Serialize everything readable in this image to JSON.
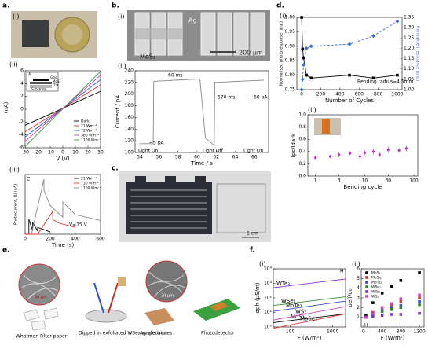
{
  "labels": {
    "a": "a.",
    "b": "b.",
    "c": "c.",
    "d": "d.",
    "e": "e.",
    "f": "f.",
    "a_i": "(i)",
    "a_ii": "(ii)",
    "a_iii": "(iii)",
    "b_i": "(i)",
    "b_ii": "(ii)",
    "d_i": "(i)",
    "d_ii": "(ii)",
    "f_i": "(i)",
    "f_ii": "(ii)"
  },
  "images": {
    "b_i": {
      "electrode": "Ag",
      "material": "MoS₂",
      "scale_bar": "200 μm"
    },
    "c": {
      "scale_bar": "1 cm"
    },
    "e": {
      "paper": "Whatman Filter paper",
      "dip": "Dipped in exfoliated WSe₂ suspension",
      "electrodes": "Ag electrodes",
      "device": "Photodetector",
      "scale_bar_1": "30 μm",
      "scale_bar_2": "30 μm"
    }
  },
  "plots": {
    "a_ii": {
      "type": "line",
      "xlabel": "V (V)",
      "ylabel": "I (nA)",
      "xlim": [
        -30,
        30
      ],
      "ylim": [
        -6,
        6
      ],
      "xticks": [
        -30,
        -20,
        -10,
        0,
        10,
        20,
        30
      ],
      "yticks": [
        -6,
        -4,
        -2,
        0,
        2,
        4,
        6
      ],
      "x": [
        -30,
        30
      ],
      "legend": "lower right",
      "panel": "A",
      "inset": {
        "top": "Gold",
        "layer": "MoS₂",
        "bottom": "ITO",
        "base": "Substrate"
      },
      "series": [
        {
          "name": "Dark",
          "color": "#000000",
          "values": [
            -2.5,
            2.8
          ]
        },
        {
          "name": "21 Wm⁻²",
          "color": "#e03030",
          "values": [
            -3.5,
            3.8
          ]
        },
        {
          "name": "72 Wm⁻²",
          "color": "#3050d0",
          "values": [
            -4.3,
            4.6
          ]
        },
        {
          "name": "360 Wm⁻²",
          "color": "#c040c0",
          "values": [
            -5,
            5.3
          ]
        },
        {
          "name": "1100 Wm⁻²",
          "color": "#40a040",
          "values": [
            -5.8,
            5.9
          ]
        }
      ]
    },
    "a_iii": {
      "type": "line",
      "xlabel": "Time (s)",
      "ylabel": "Photocurrent, ΔI (nA)",
      "xlim": [
        0,
        600
      ],
      "ylim": [
        0,
        5.2
      ],
      "xticks": [
        0,
        200,
        400,
        600
      ],
      "legend": "upper right",
      "panel": "C",
      "annotation": "V=15 V",
      "series": [
        {
          "name": "21 Wm⁻²",
          "color": "#000000",
          "x": [
            0,
            30,
            30,
            60,
            60,
            100,
            100,
            200
          ],
          "values": [
            0,
            0,
            1.3,
            0.3,
            1.0,
            0.3,
            0.6,
            0.2
          ]
        },
        {
          "name": "130 Wm⁻²",
          "color": "#e03030",
          "x": [
            0,
            100,
            220,
            220,
            260,
            400
          ],
          "values": [
            0,
            0,
            2.0,
            1.3,
            1.0,
            0.6
          ]
        },
        {
          "name": "1100 Wm⁻²",
          "color": "#888888",
          "x": [
            50,
            150,
            150,
            200,
            300,
            300,
            400,
            600
          ],
          "values": [
            0,
            4.8,
            3.8,
            2.5,
            1.5,
            2.8,
            1.7,
            1.2
          ]
        }
      ]
    },
    "b_ii": {
      "type": "line",
      "xlabel": "Time / s",
      "ylabel": "Current / pA",
      "xlim": [
        53.5,
        67.5
      ],
      "ylim": [
        100,
        240
      ],
      "xticks": [
        54,
        56,
        58,
        60,
        62,
        64,
        66
      ],
      "yticks": [
        100,
        120,
        140,
        160,
        180,
        200,
        220,
        240
      ],
      "annotations": [
        "60 ms",
        "570 ms",
        "~5 pA",
        "~60 pA",
        "Light On",
        "Light Off",
        "Light On"
      ],
      "series": [
        {
          "name": "current",
          "color": "#888888",
          "x": [
            54,
            55.4,
            55.46,
            60.3,
            60.87,
            61.8,
            61.86,
            67
          ],
          "values": [
            115,
            115,
            222,
            226,
            125,
            112,
            220,
            224
          ]
        }
      ]
    },
    "d_i": {
      "type": "line",
      "xlabel": "Number of Cycles",
      "ylabel": "Normalised photoresponse (a.u.)",
      "y2label": "Normalized resistance (a.u.)",
      "xlim": [
        -50,
        1050
      ],
      "ylim": [
        0.75,
        1.0
      ],
      "y2lim": [
        1.0,
        1.35
      ],
      "xticks": [
        0,
        200,
        400,
        600,
        800,
        1000
      ],
      "yticks": [
        0.75,
        {
          "value": 0.8,
          "label": "0.80"
        },
        0.85,
        {
          "value": 0.9,
          "label": "0.90"
        },
        0.95,
        {
          "value": 1,
          "label": "1.00"
        }
      ],
      "y2ticks": [
        {
          "value": 1,
          "label": "1.00"
        },
        1.05,
        {
          "value": 1.1,
          "label": "1.10"
        },
        1.15,
        {
          "value": 1.2,
          "label": "1.20"
        },
        1.25,
        {
          "value": 1.3,
          "label": "1.30"
        },
        1.35
      ],
      "annotation": "Bending radius=4.5mm",
      "x": [
        0,
        10,
        20,
        50,
        100,
        500,
        750,
        1000
      ],
      "series": [
        {
          "name": "photoresponse",
          "color": "#000000",
          "marker": "square",
          "values": [
            1.0,
            0.89,
            0.86,
            0.8,
            0.79,
            0.8,
            0.79,
            0.8
          ]
        },
        {
          "name": "resistance",
          "color": "#3a6fd0",
          "marker": "diamond",
          "dashed": true,
          "axis": "y2",
          "values": [
            1.0,
            1.05,
            1.12,
            1.2,
            1.21,
            1.22,
            1.26,
            1.33
          ]
        }
      ]
    },
    "d_ii": {
      "type": "scatter",
      "xlabel": "Bending cycle",
      "ylabel": "Ipc/Idark",
      "xlog": true,
      "xlim": [
        0.7,
        120
      ],
      "ylim": [
        0,
        1
      ],
      "xticks": [
        1,
        3,
        10,
        30,
        100
      ],
      "yticks": [
        {
          "value": 0,
          "label": "0.0"
        },
        0.2,
        0.4,
        0.6,
        0.8,
        {
          "value": 1,
          "label": "1.0"
        }
      ],
      "x": [
        1,
        2,
        3,
        5,
        8,
        10,
        15,
        20,
        30,
        50,
        70
      ],
      "series": [
        {
          "name": "ratio",
          "color": "#c030c0",
          "marker": "circle",
          "values": [
            0.3,
            0.32,
            0.35,
            0.37,
            0.32,
            0.38,
            0.4,
            0.35,
            0.43,
            0.42,
            0.45
          ],
          "errors": [
            0.03,
            0.03,
            0.04,
            0.03,
            0.04,
            0.04,
            0.05,
            0.04,
            0.05,
            0.04,
            0.05
          ]
        }
      ]
    },
    "f_i": {
      "type": "line",
      "xlabel": "F (W/m²)",
      "ylabel": "σph (μS/m)",
      "xlog": true,
      "ylog": true,
      "xlim": [
        40,
        2000
      ],
      "ylim": [
        1,
        10000
      ],
      "xticks": [
        100,
        1000
      ],
      "yticks": [
        {
          "value": 1,
          "label": "10⁰"
        },
        {
          "value": 10,
          "label": "10¹"
        },
        {
          "value": 100,
          "label": "10²"
        },
        {
          "value": 1000,
          "label": "10³"
        },
        {
          "value": 10000,
          "label": "10⁴"
        }
      ],
      "legend": "inline",
      "panel": "H",
      "x": [
        40,
        2000
      ],
      "series": [
        {
          "name": "WTe₂",
          "color": "#8a2be2",
          "values": [
            500,
            2000
          ]
        },
        {
          "name": "WSe₂",
          "color": "#2e8b2e",
          "values": [
            30,
            120
          ]
        },
        {
          "name": "MoTe₂",
          "color": "#3050d0",
          "values": [
            12,
            60
          ]
        },
        {
          "name": "MoS₂",
          "color": "#000000",
          "values": [
            2,
            8
          ]
        },
        {
          "name": "WS₂",
          "color": "#d040c0",
          "values": [
            3,
            25
          ]
        },
        {
          "name": "MoSe₂",
          "color": "#e03030",
          "values": [
            0.8,
            8
          ]
        }
      ]
    },
    "f_ii": {
      "type": "scatter",
      "xlabel": "F (W/m²)",
      "ylabel": "σeff/σ₀",
      "xlim": [
        -50,
        1300
      ],
      "ylim": [
        0,
        6
      ],
      "xticks": [
        0,
        400,
        800,
        1200
      ],
      "yticks": [
        1,
        2,
        3,
        4,
        5,
        6
      ],
      "legend": "upper left",
      "panel": "H",
      "x": [
        50,
        200,
        400,
        600,
        800,
        1200
      ],
      "series": [
        {
          "name": "MoS₂",
          "color": "#000000",
          "marker": "square",
          "values": [
            1.2,
            2.5,
            3.5,
            4.2,
            4.8,
            5.6
          ]
        },
        {
          "name": "MoSe₂",
          "color": "#e03030",
          "marker": "square",
          "values": [
            1,
            1.5,
            2,
            2.3,
            2.6,
            3
          ]
        },
        {
          "name": "MoTe₂",
          "color": "#3050d0",
          "marker": "square",
          "values": [
            1,
            1.3,
            1.7,
            2,
            2.2,
            2.6
          ]
        },
        {
          "name": "WSe₂",
          "color": "#2e8b2e",
          "marker": "square",
          "values": [
            1,
            1.3,
            1.6,
            1.8,
            2.0,
            2.3
          ]
        },
        {
          "name": "WTe₂",
          "color": "#8a2be2",
          "marker": "square",
          "values": [
            1,
            1.1,
            1.2,
            1.3,
            1.3,
            1.4
          ]
        },
        {
          "name": "WS₂",
          "color": "#d040c0",
          "marker": "square",
          "values": [
            1,
            1.4,
            2,
            2.4,
            2.9,
            3.3
          ]
        }
      ]
    }
  }
}
